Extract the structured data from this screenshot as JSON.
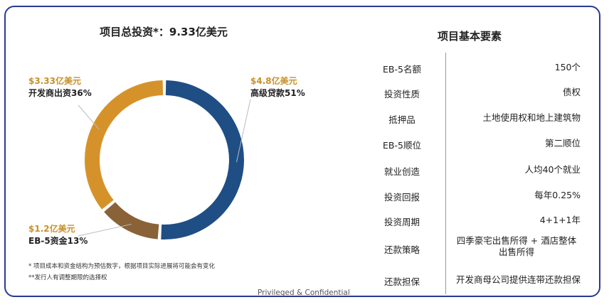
{
  "chart_data": {
    "type": "pie",
    "title": "项目总投资*：9.33亿美元",
    "slices": [
      {
        "amount": "$4.8亿美元",
        "name": "高级贷款51%",
        "value": 51,
        "color": "#1f4e85"
      },
      {
        "amount": "$1.2亿美元",
        "name": "EB-5资金13%",
        "value": 13,
        "color": "#8a6238"
      },
      {
        "amount": "$3.33亿美元",
        "name": "开发商出资36%",
        "value": 36,
        "color": "#d6922a"
      }
    ]
  },
  "footnotes": [
    "* 项目成本和资金结构为预估数字，根据项目实际进展将可能会有变化",
    "**发行人有调整期限的选择权"
  ],
  "confidential": "Privileged & Confidential",
  "table": {
    "title": "项目基本要素",
    "rows": [
      {
        "key": "EB-5名额",
        "value": "150个"
      },
      {
        "key": "投资性质",
        "value": "债权"
      },
      {
        "key": "抵押品",
        "value": "土地使用权和地上建筑物"
      },
      {
        "key": "EB-5顺位",
        "value": "第二顺位"
      },
      {
        "key": "就业创造",
        "value": "人均40个就业"
      },
      {
        "key": "投资回报",
        "value": "每年0.25%"
      },
      {
        "key": "投资周期",
        "value": "4+1+1年"
      },
      {
        "key": "还款策略",
        "value": "四季豪宅出售所得 + 酒店整体出售所得"
      },
      {
        "key": "还款担保",
        "value": "开发商母公司提供连带还款担保"
      }
    ]
  }
}
